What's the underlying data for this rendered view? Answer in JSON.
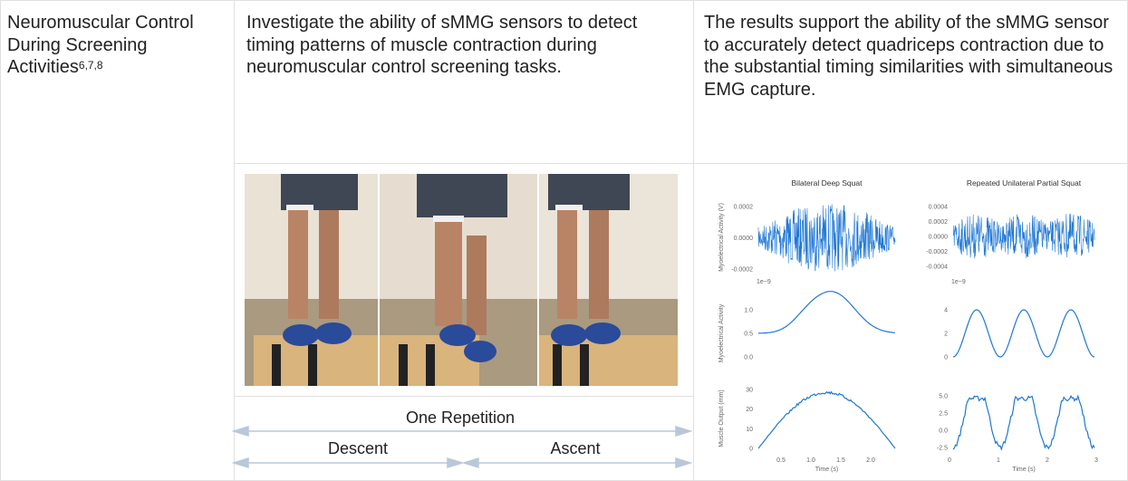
{
  "row": {
    "topic": {
      "text": "Neuromuscular Control During Screening Activities",
      "refs": "6,7,8"
    },
    "objective": "Investigate the ability of sMMG sensors to detect timing patterns of muscle contraction during neuromuscular control screening tasks.",
    "result": "The results support the ability of the sMMG sensor to accurately detect quadriceps contraction due to the substantial timing similarities with simultaneous EMG capture.",
    "figure": {
      "caption": "One Repetition",
      "phases": [
        "Descent",
        "Ascent"
      ]
    },
    "plots": [
      {
        "title": "Bilateral Deep Squat",
        "panels": [
          {
            "ylabel": "Myoelectrical Activity (V)",
            "yticks": [
              "0.0002",
              "0.0000",
              "-0.0002"
            ]
          },
          {
            "ylabel": "Myoelectrical Activity",
            "offset": "1e−9",
            "yticks": [
              "1.0",
              "0.5",
              "0.0"
            ]
          },
          {
            "ylabel": "Muscle Output (mm)",
            "yticks": [
              "30",
              "20",
              "10",
              "0"
            ]
          }
        ],
        "xticks": [
          "0.5",
          "1.0",
          "1.5",
          "2.0"
        ],
        "xlabel": "Time (s)"
      },
      {
        "title": "Repeated Unilateral Partial Squat",
        "panels": [
          {
            "yticks": [
              "0.0004",
              "0.0002",
              "0.0000",
              "-0.0002",
              "-0.0004"
            ]
          },
          {
            "offset": "1e−9",
            "yticks": [
              "4",
              "2",
              "0"
            ]
          },
          {
            "yticks": [
              "5.0",
              "2.5",
              "0.0",
              "-2.5"
            ]
          }
        ],
        "xticks": [
          "0",
          "1",
          "2",
          "3"
        ],
        "xlabel": "Time (s)"
      }
    ]
  }
}
